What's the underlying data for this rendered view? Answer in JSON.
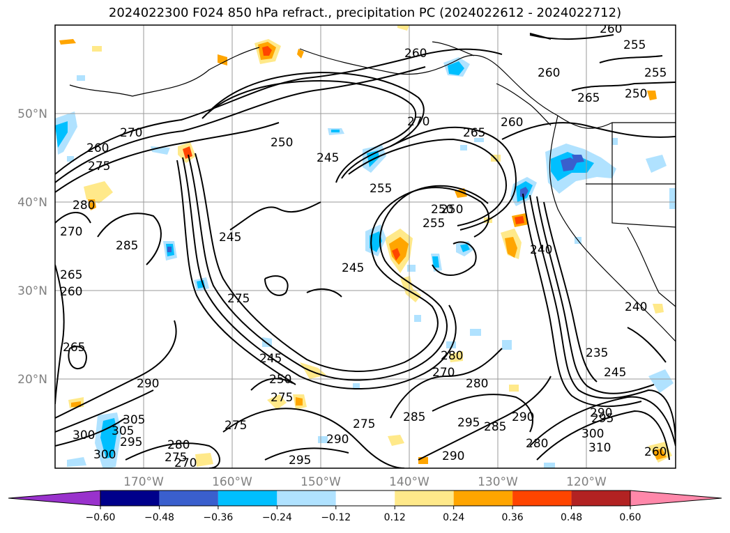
{
  "title": "2024022300 F024 850 hPa refract., precipitation PC (2024022612 - 2024022712)",
  "lat_labels": [
    "50°N",
    "40°N",
    "30°N",
    "20°N"
  ],
  "lon_labels": [
    "170°W",
    "160°W",
    "150°W",
    "140°W",
    "130°W",
    "120°W"
  ],
  "colorbar": {
    "ticks": [
      "−0.60",
      "−0.48",
      "−0.36",
      "−0.24",
      "−0.12",
      "0.12",
      "0.24",
      "0.36",
      "0.48",
      "0.60"
    ],
    "colors": [
      "#9932cc",
      "#00008b",
      "#3a5fcd",
      "#00bfff",
      "#b0e2ff",
      "#ffffff",
      "#ffe98a",
      "#ffa500",
      "#ff4500",
      "#b22222",
      "#ff88aa"
    ]
  },
  "contour_labels": [
    "260",
    "255",
    "260",
    "260",
    "265",
    "255",
    "250",
    "270",
    "265",
    "260",
    "250",
    "245",
    "270",
    "260",
    "275",
    "280",
    "270",
    "285",
    "255",
    "250",
    "245",
    "255",
    "250",
    "240",
    "245",
    "265",
    "260",
    "275",
    "245",
    "250",
    "265",
    "280",
    "270",
    "280",
    "290",
    "235",
    "245",
    "290",
    "300",
    "275",
    "275",
    "275",
    "285",
    "295",
    "285",
    "290",
    "280",
    "305",
    "300",
    "310",
    "295",
    "290",
    "290",
    "300",
    "295",
    "305",
    "280",
    "275",
    "270",
    "295",
    "240",
    "260"
  ]
}
